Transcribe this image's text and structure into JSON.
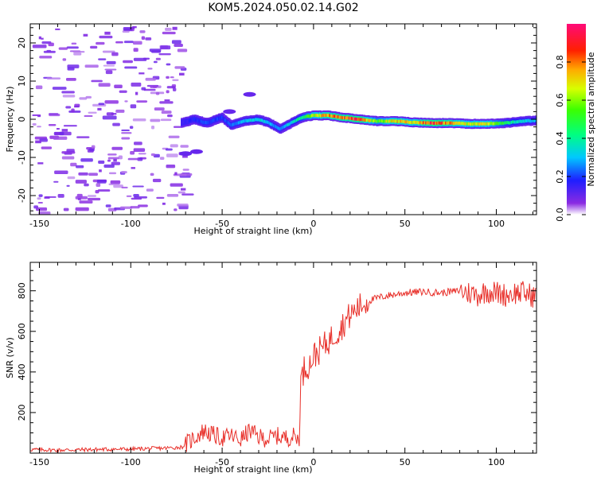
{
  "title": "KOM5.2024.050.02.14.G02",
  "chart_data": [
    {
      "type": "heatmap",
      "xlabel": "Height of straight line (km)",
      "ylabel": "Frequency (Hz)",
      "xlim": [
        -155,
        122
      ],
      "ylim": [
        -25,
        25
      ],
      "xticks": [
        -150,
        -100,
        -50,
        0,
        50,
        100
      ],
      "yticks": [
        -20,
        -10,
        0,
        10,
        20
      ],
      "colorbar": {
        "label": "Normalized spectral amplitude",
        "range": [
          0,
          1
        ],
        "ticks": [
          "0.0",
          "0.2",
          "0.4",
          "0.6",
          "0.8"
        ]
      },
      "ridge": [
        {
          "x": -72,
          "freq": -1.0,
          "amp": 0.15
        },
        {
          "x": -65,
          "freq": 0.0,
          "amp": 0.18
        },
        {
          "x": -58,
          "freq": -1.0,
          "amp": 0.22
        },
        {
          "x": -50,
          "freq": 0.5,
          "amp": 0.2
        },
        {
          "x": -45,
          "freq": -1.5,
          "amp": 0.25
        },
        {
          "x": -38,
          "freq": -0.5,
          "amp": 0.3
        },
        {
          "x": -30,
          "freq": 0.0,
          "amp": 0.35
        },
        {
          "x": -24,
          "freq": -1.0,
          "amp": 0.3
        },
        {
          "x": -18,
          "freq": -2.5,
          "amp": 0.25
        },
        {
          "x": -12,
          "freq": -1.0,
          "amp": 0.35
        },
        {
          "x": -6,
          "freq": 0.5,
          "amp": 0.45
        },
        {
          "x": 0,
          "freq": 1.0,
          "amp": 0.65
        },
        {
          "x": 8,
          "freq": 1.0,
          "amp": 0.8
        },
        {
          "x": 15,
          "freq": 0.5,
          "amp": 0.85
        },
        {
          "x": 25,
          "freq": 0.0,
          "amp": 0.9
        },
        {
          "x": 35,
          "freq": -0.5,
          "amp": 0.55
        },
        {
          "x": 45,
          "freq": -0.5,
          "amp": 0.75
        },
        {
          "x": 55,
          "freq": -0.8,
          "amp": 0.7
        },
        {
          "x": 65,
          "freq": -1.0,
          "amp": 0.9
        },
        {
          "x": 75,
          "freq": -1.0,
          "amp": 0.8
        },
        {
          "x": 85,
          "freq": -1.2,
          "amp": 0.65
        },
        {
          "x": 95,
          "freq": -1.2,
          "amp": 0.7
        },
        {
          "x": 105,
          "freq": -1.0,
          "amp": 0.45
        },
        {
          "x": 115,
          "freq": -0.5,
          "amp": 0.35
        },
        {
          "x": 122,
          "freq": -0.3,
          "amp": 0.3
        }
      ]
    },
    {
      "type": "line",
      "xlabel": "Height of straight line (km)",
      "ylabel": "SNR (v/v)",
      "xlim": [
        -155,
        122
      ],
      "ylim": [
        0,
        940
      ],
      "xticks": [
        -150,
        -100,
        -50,
        0,
        50,
        100
      ],
      "yticks": [
        200,
        400,
        600,
        800
      ],
      "series": [
        {
          "color": "#e8302a",
          "x": [
            -155,
            -140,
            -120,
            -100,
            -80,
            -72,
            -66,
            -60,
            -55,
            -50,
            -45,
            -40,
            -35,
            -30,
            -25,
            -20,
            -15,
            -10,
            -8,
            -7,
            -5,
            -2,
            0,
            5,
            10,
            15,
            20,
            25,
            30,
            35,
            40,
            50,
            60,
            70,
            80,
            85,
            90,
            95,
            100,
            105,
            110,
            115,
            122
          ],
          "y": [
            18,
            15,
            18,
            20,
            25,
            30,
            70,
            110,
            90,
            75,
            85,
            65,
            110,
            80,
            70,
            85,
            75,
            85,
            60,
            350,
            420,
            440,
            480,
            520,
            570,
            620,
            680,
            720,
            750,
            765,
            775,
            790,
            795,
            790,
            800,
            790,
            780,
            800,
            790,
            780,
            790,
            790,
            770
          ]
        }
      ]
    }
  ]
}
